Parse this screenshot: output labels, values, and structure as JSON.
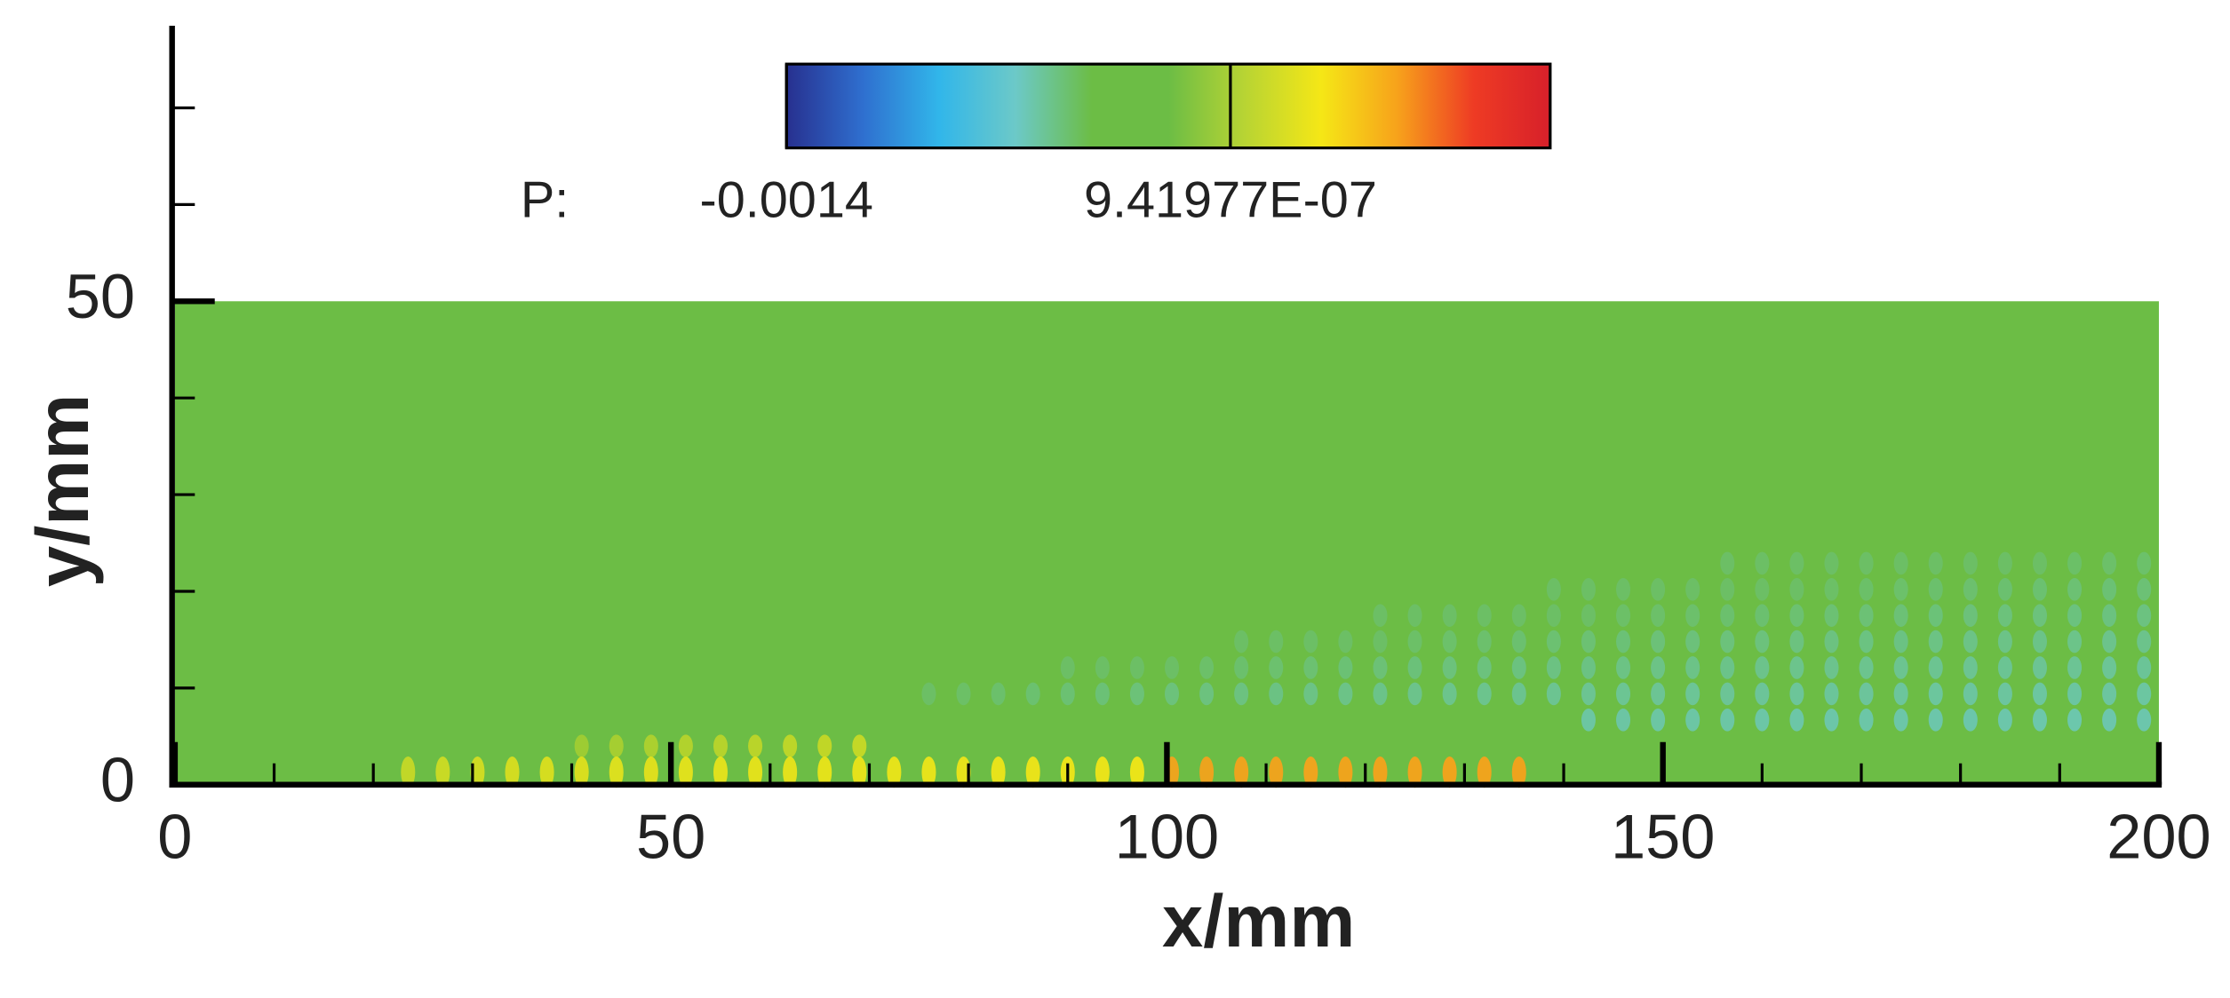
{
  "chart_data": {
    "type": "contour",
    "xlabel": "x/mm",
    "ylabel": "y/mm",
    "xlim": [
      0,
      200
    ],
    "ylim": [
      0,
      78.5
    ],
    "xticks": [
      0,
      50,
      100,
      150,
      200
    ],
    "yticks": [
      0,
      50
    ],
    "xminor_ticks": [
      10,
      20,
      30,
      40,
      60,
      70,
      80,
      90,
      110,
      120,
      130,
      140,
      160,
      170,
      180,
      190
    ],
    "yminor_ticks": [
      10,
      20,
      30,
      40,
      60,
      70
    ],
    "field_extent": {
      "x": [
        0,
        200
      ],
      "y": [
        0,
        50
      ]
    },
    "field_color": "#6cbd45",
    "colorbar": {
      "label": "P:",
      "lim": [
        -0.0014,
        0.00101
      ],
      "ticks": [
        -0.0014,
        {
          "value": 9.41977e-07,
          "label": "9.41977E-07"
        }
      ],
      "colormap": [
        "#27308f",
        "#2f6fcf",
        "#31b6ea",
        "#6cc9c8",
        "#6cbd45",
        "#6cbd45",
        "#b8d433",
        "#f5e716",
        "#f7a21b",
        "#ee3b24",
        "#d7202a"
      ]
    }
  }
}
